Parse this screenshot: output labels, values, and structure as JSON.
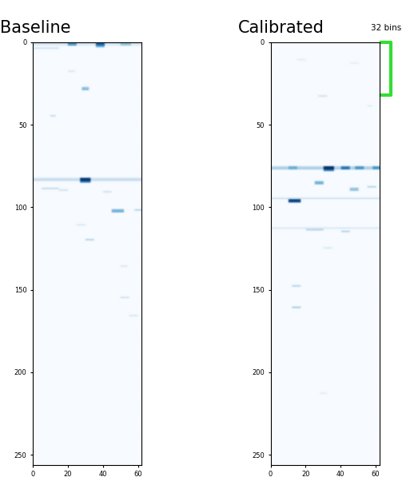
{
  "chart_data": [
    {
      "type": "heatmap",
      "title": "Baseline",
      "xlim": [
        0,
        62
      ],
      "ylim": [
        256,
        0
      ],
      "xticks": [
        0,
        20,
        40,
        60
      ],
      "yticks": [
        0,
        50,
        100,
        150,
        200,
        250
      ],
      "value_range": [
        0,
        1
      ],
      "cells": [
        [
          0,
          0,
          62,
          0.15
        ],
        [
          1,
          0,
          62,
          0.15
        ],
        [
          0,
          20,
          25,
          0.6
        ],
        [
          1,
          20,
          25,
          0.6
        ],
        [
          0,
          36,
          41,
          0.8
        ],
        [
          1,
          36,
          41,
          0.8
        ],
        [
          2,
          36,
          41,
          0.5
        ],
        [
          0,
          50,
          56,
          0.4
        ],
        [
          1,
          50,
          56,
          0.4
        ],
        [
          3,
          0,
          15,
          0.2
        ],
        [
          27,
          28,
          32,
          0.4
        ],
        [
          28,
          28,
          32,
          0.45
        ],
        [
          17,
          20,
          24,
          0.15
        ],
        [
          44,
          10,
          13,
          0.25
        ],
        [
          82,
          0,
          62,
          0.2
        ],
        [
          83,
          0,
          62,
          0.25
        ],
        [
          82,
          27,
          33,
          0.95
        ],
        [
          83,
          27,
          33,
          1.0
        ],
        [
          84,
          27,
          33,
          0.7
        ],
        [
          88,
          5,
          15,
          0.25
        ],
        [
          89,
          15,
          20,
          0.2
        ],
        [
          90,
          40,
          45,
          0.2
        ],
        [
          101,
          45,
          52,
          0.45
        ],
        [
          102,
          45,
          52,
          0.5
        ],
        [
          101,
          58,
          62,
          0.3
        ],
        [
          110,
          25,
          30,
          0.15
        ],
        [
          119,
          30,
          35,
          0.3
        ],
        [
          135,
          50,
          54,
          0.15
        ],
        [
          154,
          50,
          55,
          0.2
        ],
        [
          165,
          55,
          60,
          0.15
        ]
      ]
    },
    {
      "type": "heatmap",
      "title": "Calibrated",
      "xlim": [
        0,
        62
      ],
      "ylim": [
        256,
        0
      ],
      "xticks": [
        0,
        20,
        40,
        60
      ],
      "yticks": [
        0,
        50,
        100,
        150,
        200,
        250
      ],
      "value_range": [
        0,
        1
      ],
      "annotation": {
        "text": "32 bins",
        "y_range": [
          0,
          32
        ],
        "color": "#33dd33"
      },
      "cells": [
        [
          10,
          15,
          20,
          0.1
        ],
        [
          12,
          45,
          50,
          0.1
        ],
        [
          32,
          27,
          32,
          0.2
        ],
        [
          38,
          55,
          58,
          0.12
        ],
        [
          75,
          0,
          62,
          0.3
        ],
        [
          76,
          0,
          62,
          0.35
        ],
        [
          75,
          30,
          36,
          1.0
        ],
        [
          76,
          30,
          36,
          1.0
        ],
        [
          77,
          30,
          36,
          0.7
        ],
        [
          75,
          40,
          45,
          0.7
        ],
        [
          76,
          40,
          45,
          0.75
        ],
        [
          75,
          48,
          53,
          0.6
        ],
        [
          76,
          48,
          53,
          0.6
        ],
        [
          75,
          58,
          62,
          0.6
        ],
        [
          76,
          58,
          62,
          0.6
        ],
        [
          75,
          10,
          15,
          0.5
        ],
        [
          76,
          10,
          15,
          0.5
        ],
        [
          84,
          25,
          30,
          0.45
        ],
        [
          85,
          25,
          30,
          0.5
        ],
        [
          88,
          45,
          50,
          0.4
        ],
        [
          89,
          45,
          50,
          0.4
        ],
        [
          87,
          55,
          60,
          0.3
        ],
        [
          95,
          10,
          17,
          0.95
        ],
        [
          96,
          10,
          17,
          0.9
        ],
        [
          94,
          0,
          62,
          0.2
        ],
        [
          112,
          0,
          62,
          0.15
        ],
        [
          113,
          20,
          30,
          0.3
        ],
        [
          114,
          40,
          45,
          0.3
        ],
        [
          124,
          30,
          35,
          0.15
        ],
        [
          147,
          12,
          17,
          0.3
        ],
        [
          160,
          12,
          17,
          0.35
        ],
        [
          212,
          28,
          32,
          0.1
        ]
      ]
    }
  ]
}
